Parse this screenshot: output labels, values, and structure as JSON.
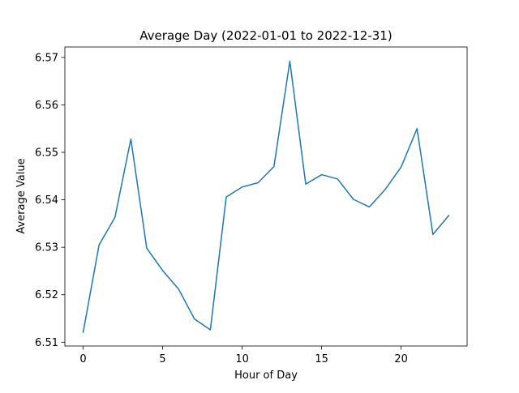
{
  "chart_data": {
    "type": "line",
    "title": "Average Day (2022-01-01 to 2022-12-31)",
    "xlabel": "Hour of Day",
    "ylabel": "Average Value",
    "xlim": [
      -1.15,
      24.15
    ],
    "ylim": [
      6.5092,
      6.5722
    ],
    "xticks": [
      0,
      5,
      10,
      15,
      20
    ],
    "xtick_labels": [
      "0",
      "5",
      "10",
      "15",
      "20"
    ],
    "yticks": [
      6.51,
      6.52,
      6.53,
      6.54,
      6.55,
      6.56,
      6.57
    ],
    "ytick_labels": [
      "6.51",
      "6.52",
      "6.53",
      "6.54",
      "6.55",
      "6.56",
      "6.57"
    ],
    "grid": false,
    "series": [
      {
        "color": "#1f77b4",
        "x": [
          0,
          1,
          2,
          3,
          4,
          5,
          6,
          7,
          8,
          9,
          10,
          11,
          12,
          13,
          14,
          15,
          16,
          17,
          18,
          19,
          20,
          21,
          22,
          23
        ],
        "values": [
          6.5121,
          6.5305,
          6.5363,
          6.5528,
          6.5298,
          6.5251,
          6.5212,
          6.5149,
          6.5126,
          6.5406,
          6.5427,
          6.5436,
          6.547,
          6.5692,
          6.5433,
          6.5453,
          6.5444,
          6.5401,
          6.5385,
          6.5422,
          6.5469,
          6.555,
          6.5327,
          6.5367
        ]
      }
    ]
  }
}
